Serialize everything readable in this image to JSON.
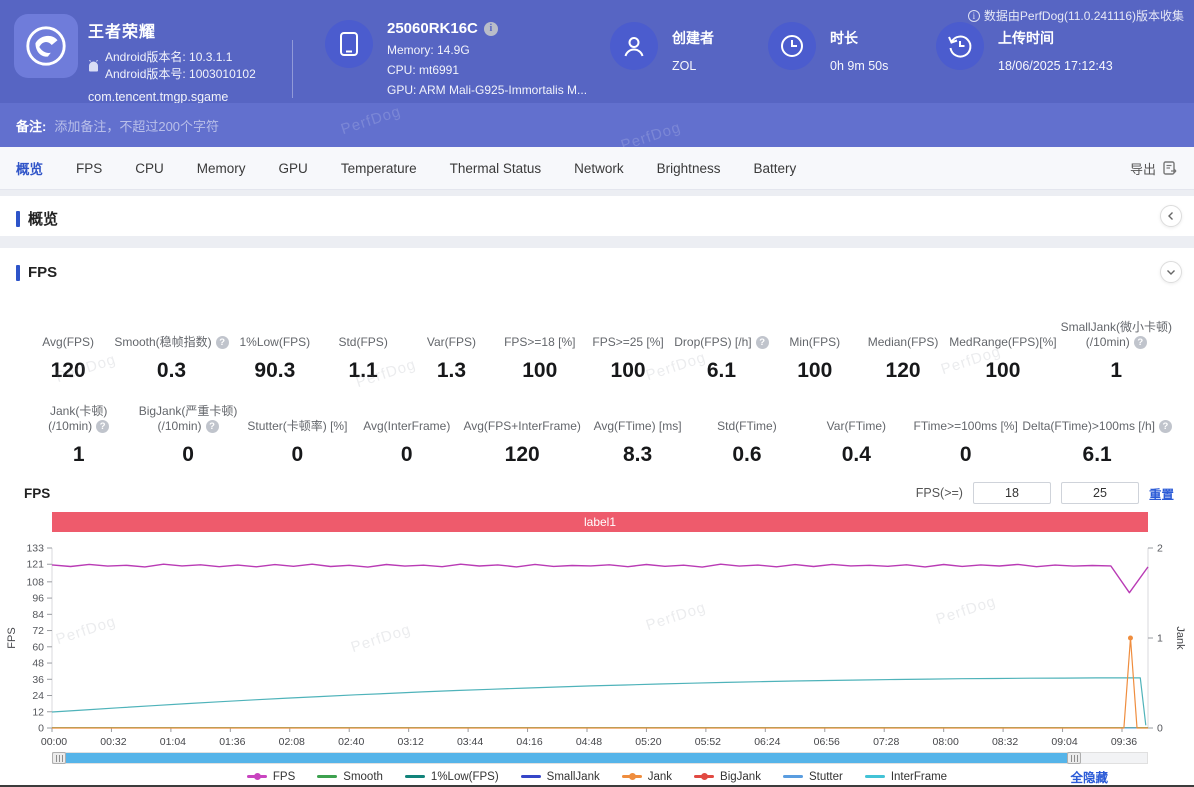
{
  "header": {
    "app": {
      "name": "王者荣耀",
      "android_version_name": "Android版本名: 10.3.1.1",
      "android_version_code": "Android版本号: 1003010102",
      "package": "com.tencent.tmgp.sgame"
    },
    "device": {
      "model": "25060RK16C",
      "memory": "Memory: 14.9G",
      "cpu": "CPU: mt6991",
      "gpu": "GPU: ARM Mali-G925-Immortalis M..."
    },
    "creator": {
      "label": "创建者",
      "value": "ZOL"
    },
    "duration": {
      "label": "时长",
      "value": "0h 9m 50s"
    },
    "upload_time": {
      "label": "上传时间",
      "value": "18/06/2025 17:12:43"
    },
    "collect_info": "数据由PerfDog(11.0.241116)版本收集"
  },
  "note_bar": {
    "label": "备注:",
    "placeholder": "添加备注，不超过200个字符"
  },
  "tabs": {
    "items": [
      "概览",
      "FPS",
      "CPU",
      "Memory",
      "GPU",
      "Temperature",
      "Thermal Status",
      "Network",
      "Brightness",
      "Battery"
    ],
    "active_index": 0,
    "export_label": "导出"
  },
  "sections": {
    "overview_title": "概览",
    "fps_title": "FPS"
  },
  "stats_row1": [
    {
      "lines": [
        "Avg(FPS)"
      ],
      "value": "120",
      "help": false
    },
    {
      "lines": [
        "Smooth(稳帧指数)"
      ],
      "value": "0.3",
      "help": true
    },
    {
      "lines": [
        "1%Low(FPS)"
      ],
      "value": "90.3",
      "help": false
    },
    {
      "lines": [
        "Std(FPS)"
      ],
      "value": "1.1",
      "help": false
    },
    {
      "lines": [
        "Var(FPS)"
      ],
      "value": "1.3",
      "help": false
    },
    {
      "lines": [
        "FPS>=18 [%]"
      ],
      "value": "100",
      "help": false
    },
    {
      "lines": [
        "FPS>=25 [%]"
      ],
      "value": "100",
      "help": false
    },
    {
      "lines": [
        "Drop(FPS) [/h]"
      ],
      "value": "6.1",
      "help": true
    },
    {
      "lines": [
        "Min(FPS)"
      ],
      "value": "100",
      "help": false
    },
    {
      "lines": [
        "Median(FPS)"
      ],
      "value": "120",
      "help": false
    },
    {
      "lines": [
        "MedRange(FPS)[%]"
      ],
      "value": "100",
      "help": false
    },
    {
      "lines": [
        "SmallJank(微小卡顿)",
        "(/10min)"
      ],
      "value": "1",
      "help": true
    }
  ],
  "stats_row2": [
    {
      "lines": [
        "Jank(卡顿)",
        "(/10min)"
      ],
      "value": "1",
      "help": true
    },
    {
      "lines": [
        "BigJank(严重卡顿)",
        "(/10min)"
      ],
      "value": "0",
      "help": true
    },
    {
      "lines": [
        "Stutter(卡顿率) [%]"
      ],
      "value": "0",
      "help": false
    },
    {
      "lines": [
        "Avg(InterFrame)"
      ],
      "value": "0",
      "help": false
    },
    {
      "lines": [
        "Avg(FPS+InterFrame)"
      ],
      "value": "120",
      "help": false
    },
    {
      "lines": [
        "Avg(FTime) [ms]"
      ],
      "value": "8.3",
      "help": false
    },
    {
      "lines": [
        "Std(FTime)"
      ],
      "value": "0.6",
      "help": false
    },
    {
      "lines": [
        "Var(FTime)"
      ],
      "value": "0.4",
      "help": false
    },
    {
      "lines": [
        "FTime>=100ms [%]"
      ],
      "value": "0",
      "help": false
    },
    {
      "lines": [
        "Delta(FTime)>100ms [/h]"
      ],
      "value": "6.1",
      "help": true
    }
  ],
  "chart_controls": {
    "title": "FPS",
    "filter_label": "FPS(>=)",
    "threshold1": "18",
    "threshold2": "25",
    "reset_label": "重置",
    "hide_all_label": "全隐藏"
  },
  "watermark": "PerfDog",
  "chart_data": {
    "type": "line",
    "annotation_label": "label1",
    "x_ticks": [
      "00:00",
      "00:32",
      "01:04",
      "01:36",
      "02:08",
      "02:40",
      "03:12",
      "03:44",
      "04:16",
      "04:48",
      "05:20",
      "05:52",
      "06:24",
      "06:56",
      "07:28",
      "08:00",
      "08:32",
      "09:04",
      "09:36"
    ],
    "x_tick_interval_s": 32,
    "total_duration_s": 590,
    "y_left": {
      "label": "FPS",
      "ticks": [
        0,
        12,
        24,
        36,
        48,
        60,
        72,
        84,
        96,
        108,
        121,
        133
      ],
      "max": 133
    },
    "y_right": {
      "label": "Jank",
      "ticks": [
        0,
        1,
        2
      ],
      "max": 2
    },
    "legend": [
      {
        "name": "FPS",
        "color": "#c944c0",
        "marker": true
      },
      {
        "name": "Smooth",
        "color": "#3da14f",
        "marker": false
      },
      {
        "name": "1%Low(FPS)",
        "color": "#12837a",
        "marker": false
      },
      {
        "name": "SmallJank",
        "color": "#3646c8",
        "marker": false
      },
      {
        "name": "Jank",
        "color": "#ef8d3e",
        "marker": true
      },
      {
        "name": "BigJank",
        "color": "#e14a42",
        "marker": true
      },
      {
        "name": "Stutter",
        "color": "#5a9de0",
        "marker": false
      },
      {
        "name": "InterFrame",
        "color": "#43c3d6",
        "marker": false
      }
    ],
    "series": [
      {
        "name": "Smooth",
        "axis": "left",
        "color": "#3da14f",
        "width": 1,
        "x": [
          0,
          1
        ],
        "y": [
          0.3,
          0.3
        ]
      },
      {
        "name": "SmallJank",
        "axis": "left",
        "color": "#3646c8",
        "width": 1,
        "x": [
          0,
          1
        ],
        "y": [
          0,
          0
        ]
      },
      {
        "name": "Stutter",
        "axis": "left",
        "color": "#5a9de0",
        "width": 1,
        "x": [
          0,
          1
        ],
        "y": [
          0,
          0
        ]
      },
      {
        "name": "InterFrame",
        "axis": "left",
        "color": "#4fb3ba",
        "width": 1.2,
        "x": [
          0,
          0.031,
          0.062,
          0.092,
          0.123,
          0.154,
          0.185,
          0.215,
          0.246,
          0.277,
          0.308,
          0.338,
          0.369,
          0.4,
          0.431,
          0.461,
          0.492,
          0.523,
          0.554,
          0.584,
          0.615,
          0.646,
          0.677,
          0.707,
          0.738,
          0.769,
          0.8,
          0.83,
          0.861,
          0.892,
          0.923,
          0.953,
          0.985,
          0.993,
          0.998
        ],
        "y": [
          11.8,
          13.4,
          15.0,
          16.5,
          18.0,
          19.4,
          20.8,
          22.1,
          23.3,
          24.5,
          25.6,
          26.7,
          27.7,
          28.6,
          29.5,
          30.3,
          31.1,
          31.8,
          32.5,
          33.1,
          33.7,
          34.2,
          34.7,
          35.1,
          35.5,
          35.8,
          36.1,
          36.4,
          36.6,
          36.8,
          36.9,
          37.0,
          37.0,
          37.0,
          2.0
        ]
      },
      {
        "name": "Jank",
        "axis": "right",
        "color": "#ef8d3e",
        "width": 1.2,
        "peak_dot": true,
        "x": [
          0,
          0.97,
          0.978,
          0.984,
          0.99,
          1.0
        ],
        "y": [
          0,
          0,
          0,
          1,
          0,
          0
        ]
      },
      {
        "name": "FPS",
        "axis": "left",
        "color": "#b93bb5",
        "width": 1.4,
        "y": [
          120.5,
          119.3,
          120.9,
          119.6,
          120.2,
          119.0,
          121.0,
          119.8,
          120.6,
          119.2,
          120.4,
          119.1,
          120.7,
          119.5,
          121.0,
          119.3,
          120.2,
          118.9,
          120.8,
          119.6,
          120.3,
          119.2,
          121.0,
          119.7,
          120.5,
          119.0,
          120.9,
          119.4,
          120.1,
          119.8,
          120.6,
          119.2,
          120.8,
          119.5,
          120.3,
          118.9,
          121.0,
          119.6,
          120.4,
          119.1,
          120.7,
          119.3,
          120.9,
          119.8,
          120.2,
          119.5,
          120.6,
          119.0,
          120.8,
          119.4,
          120.5,
          119.7,
          120.9,
          119.2,
          120.4,
          119.6,
          120.1,
          119.8,
          100.0,
          119.0
        ]
      }
    ]
  }
}
